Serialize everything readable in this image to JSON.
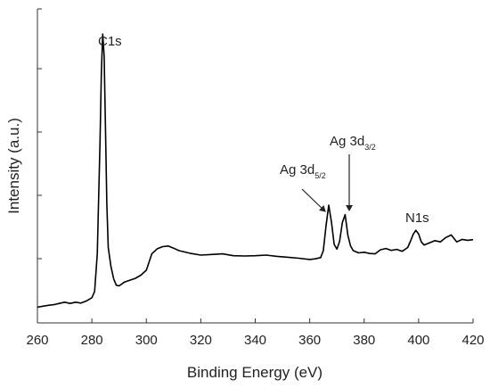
{
  "chart_data": {
    "type": "line",
    "title": "",
    "xlabel": "Binding Energy (eV)",
    "ylabel": "Intensity (a.u.)",
    "xlim": [
      260,
      420
    ],
    "ylim": [
      0,
      100
    ],
    "xticks": [
      260,
      280,
      300,
      320,
      340,
      360,
      380,
      400,
      420
    ],
    "yticks_labeled": false,
    "grid": false,
    "legend": "none",
    "colors": {
      "line": "#000000",
      "axis": "#333333",
      "text": "#222222"
    },
    "series": [
      {
        "x": [
          260,
          262,
          264,
          266,
          268,
          270,
          272,
          274,
          276,
          278,
          280,
          281,
          282,
          283,
          283.5,
          284,
          284.5,
          285,
          285.5,
          286,
          287,
          288,
          289,
          290,
          292,
          294,
          296,
          298,
          300,
          302,
          304,
          306,
          308,
          310,
          312,
          316,
          320,
          324,
          328,
          332,
          336,
          340,
          344,
          348,
          352,
          356,
          360,
          362,
          364,
          365,
          366,
          367,
          368,
          369,
          370,
          371,
          372,
          373,
          374,
          375,
          376,
          378,
          380,
          382,
          384,
          386,
          388,
          390,
          392,
          394,
          396,
          397,
          398,
          399,
          400,
          401,
          402,
          404,
          406,
          408,
          410,
          412,
          414,
          416,
          418,
          420
        ],
        "y": [
          5,
          5.3,
          5.6,
          5.8,
          6.2,
          6.6,
          6.2,
          6.6,
          6.3,
          7,
          8,
          10,
          22,
          58,
          80,
          92,
          85,
          62,
          38,
          24,
          18,
          14,
          12,
          11.8,
          13,
          13.6,
          14.2,
          15.2,
          16.8,
          22,
          23.6,
          24.3,
          24.5,
          23.8,
          23,
          22.2,
          21.6,
          21.8,
          22,
          21.4,
          21.3,
          21.4,
          21.6,
          21.2,
          20.9,
          20.6,
          20.2,
          20.4,
          20.8,
          23,
          31,
          37.5,
          32,
          25,
          23.5,
          26,
          32,
          34.5,
          28,
          24.5,
          23,
          22.3,
          22.5,
          22.1,
          22,
          23.3,
          23.7,
          23.1,
          23.4,
          22.8,
          24,
          26,
          28.2,
          29.5,
          28.3,
          25.8,
          24.8,
          25.5,
          26.2,
          25.8,
          27.2,
          28,
          25.8,
          26.6,
          26.3,
          26.5
        ]
      }
    ],
    "annotations": [
      {
        "label": "C1s",
        "sub": "",
        "x": 284,
        "y": 92
      },
      {
        "label": "Ag 3d",
        "sub": "5/2",
        "x": 367,
        "y": 37.5
      },
      {
        "label": "Ag 3d",
        "sub": "3/2",
        "x": 373,
        "y": 34.5
      },
      {
        "label": "N1s",
        "sub": "",
        "x": 399,
        "y": 29.5
      }
    ]
  }
}
